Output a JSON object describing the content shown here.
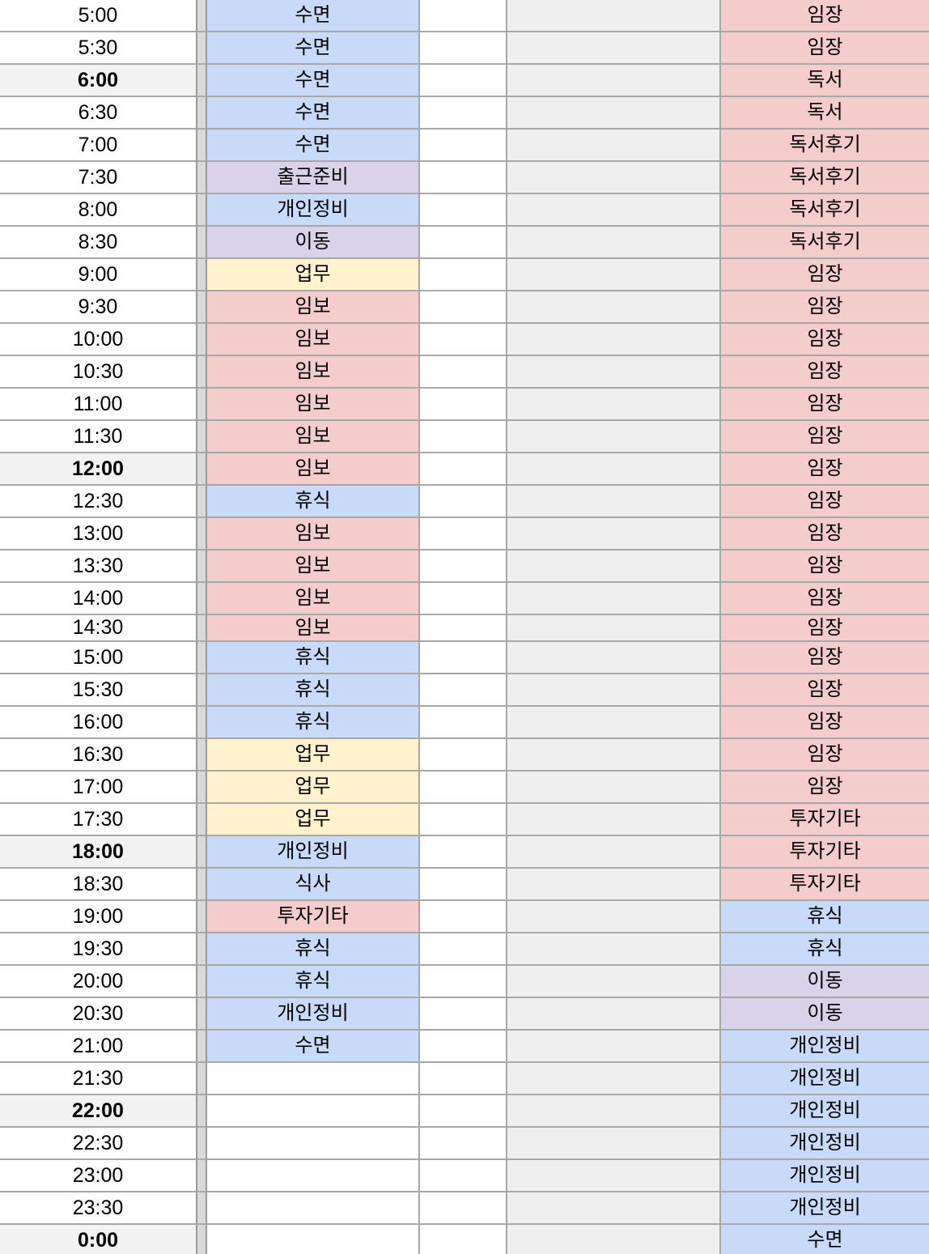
{
  "palette": {
    "blue": "#c9daf8",
    "pink": "#f4cccc",
    "purple": "#d9d2e9",
    "yellow": "#fff2cc",
    "white": "#ffffff",
    "column_d_fill": "#efefef",
    "time_highlight": "#f2f2f2",
    "gridline": "#a8a8a8",
    "divider_fill": "#d9d9d9",
    "divider_edge": "#9a9a9a",
    "text": "#000000"
  },
  "rows": [
    {
      "time": "5:00",
      "bold": false,
      "b": {
        "text": "수면",
        "color": "blue"
      },
      "e": {
        "text": "임장",
        "color": "pink"
      }
    },
    {
      "time": "5:30",
      "bold": false,
      "b": {
        "text": "수면",
        "color": "blue"
      },
      "e": {
        "text": "임장",
        "color": "pink"
      }
    },
    {
      "time": "6:00",
      "bold": true,
      "b": {
        "text": "수면",
        "color": "blue"
      },
      "e": {
        "text": "독서",
        "color": "pink"
      }
    },
    {
      "time": "6:30",
      "bold": false,
      "b": {
        "text": "수면",
        "color": "blue"
      },
      "e": {
        "text": "독서",
        "color": "pink"
      }
    },
    {
      "time": "7:00",
      "bold": false,
      "b": {
        "text": "수면",
        "color": "blue"
      },
      "e": {
        "text": "독서후기",
        "color": "pink"
      }
    },
    {
      "time": "7:30",
      "bold": false,
      "b": {
        "text": "출근준비",
        "color": "purple"
      },
      "e": {
        "text": "독서후기",
        "color": "pink"
      }
    },
    {
      "time": "8:00",
      "bold": false,
      "b": {
        "text": "개인정비",
        "color": "blue"
      },
      "e": {
        "text": "독서후기",
        "color": "pink"
      }
    },
    {
      "time": "8:30",
      "bold": false,
      "b": {
        "text": "이동",
        "color": "purple"
      },
      "e": {
        "text": "독서후기",
        "color": "pink"
      }
    },
    {
      "time": "9:00",
      "bold": false,
      "b": {
        "text": "업무",
        "color": "yellow"
      },
      "e": {
        "text": "임장",
        "color": "pink"
      }
    },
    {
      "time": "9:30",
      "bold": false,
      "b": {
        "text": "임보",
        "color": "pink"
      },
      "e": {
        "text": "임장",
        "color": "pink"
      }
    },
    {
      "time": "10:00",
      "bold": false,
      "b": {
        "text": "임보",
        "color": "pink"
      },
      "e": {
        "text": "임장",
        "color": "pink"
      }
    },
    {
      "time": "10:30",
      "bold": false,
      "b": {
        "text": "임보",
        "color": "pink"
      },
      "e": {
        "text": "임장",
        "color": "pink"
      }
    },
    {
      "time": "11:00",
      "bold": false,
      "b": {
        "text": "임보",
        "color": "pink"
      },
      "e": {
        "text": "임장",
        "color": "pink"
      }
    },
    {
      "time": "11:30",
      "bold": false,
      "b": {
        "text": "임보",
        "color": "pink"
      },
      "e": {
        "text": "임장",
        "color": "pink"
      }
    },
    {
      "time": "12:00",
      "bold": true,
      "b": {
        "text": "임보",
        "color": "pink"
      },
      "e": {
        "text": "임장",
        "color": "pink"
      }
    },
    {
      "time": "12:30",
      "bold": false,
      "b": {
        "text": "휴식",
        "color": "blue"
      },
      "e": {
        "text": "임장",
        "color": "pink"
      }
    },
    {
      "time": "13:00",
      "bold": false,
      "b": {
        "text": "임보",
        "color": "pink"
      },
      "e": {
        "text": "임장",
        "color": "pink"
      }
    },
    {
      "time": "13:30",
      "bold": false,
      "b": {
        "text": "임보",
        "color": "pink"
      },
      "e": {
        "text": "임장",
        "color": "pink"
      }
    },
    {
      "time": "14:00",
      "bold": false,
      "b": {
        "text": "임보",
        "color": "pink"
      },
      "e": {
        "text": "임장",
        "color": "pink"
      }
    },
    {
      "time": "14:30",
      "bold": false,
      "height": 33,
      "b": {
        "text": "임보",
        "color": "pink"
      },
      "e": {
        "text": "임장",
        "color": "pink"
      }
    },
    {
      "time": "15:00",
      "bold": false,
      "b": {
        "text": "휴식",
        "color": "blue"
      },
      "e": {
        "text": "임장",
        "color": "pink"
      }
    },
    {
      "time": "15:30",
      "bold": false,
      "b": {
        "text": "휴식",
        "color": "blue"
      },
      "e": {
        "text": "임장",
        "color": "pink"
      }
    },
    {
      "time": "16:00",
      "bold": false,
      "b": {
        "text": "휴식",
        "color": "blue"
      },
      "e": {
        "text": "임장",
        "color": "pink"
      }
    },
    {
      "time": "16:30",
      "bold": false,
      "b": {
        "text": "업무",
        "color": "yellow"
      },
      "e": {
        "text": "임장",
        "color": "pink"
      }
    },
    {
      "time": "17:00",
      "bold": false,
      "b": {
        "text": "업무",
        "color": "yellow"
      },
      "e": {
        "text": "임장",
        "color": "pink"
      }
    },
    {
      "time": "17:30",
      "bold": false,
      "b": {
        "text": "업무",
        "color": "yellow"
      },
      "e": {
        "text": "투자기타",
        "color": "pink"
      }
    },
    {
      "time": "18:00",
      "bold": true,
      "b": {
        "text": "개인정비",
        "color": "blue"
      },
      "e": {
        "text": "투자기타",
        "color": "pink"
      }
    },
    {
      "time": "18:30",
      "bold": false,
      "b": {
        "text": "식사",
        "color": "blue"
      },
      "e": {
        "text": "투자기타",
        "color": "pink"
      }
    },
    {
      "time": "19:00",
      "bold": false,
      "b": {
        "text": "투자기타",
        "color": "pink"
      },
      "e": {
        "text": "휴식",
        "color": "blue"
      }
    },
    {
      "time": "19:30",
      "bold": false,
      "b": {
        "text": "휴식",
        "color": "blue"
      },
      "e": {
        "text": "휴식",
        "color": "blue"
      }
    },
    {
      "time": "20:00",
      "bold": false,
      "b": {
        "text": "휴식",
        "color": "blue"
      },
      "e": {
        "text": "이동",
        "color": "purple"
      }
    },
    {
      "time": "20:30",
      "bold": false,
      "b": {
        "text": "개인정비",
        "color": "blue"
      },
      "e": {
        "text": "이동",
        "color": "purple"
      }
    },
    {
      "time": "21:00",
      "bold": false,
      "b": {
        "text": "수면",
        "color": "blue"
      },
      "e": {
        "text": "개인정비",
        "color": "blue"
      }
    },
    {
      "time": "21:30",
      "bold": false,
      "b": {
        "text": "",
        "color": "white"
      },
      "e": {
        "text": "개인정비",
        "color": "blue"
      }
    },
    {
      "time": "22:00",
      "bold": true,
      "b": {
        "text": "",
        "color": "white"
      },
      "e": {
        "text": "개인정비",
        "color": "blue"
      }
    },
    {
      "time": "22:30",
      "bold": false,
      "b": {
        "text": "",
        "color": "white"
      },
      "e": {
        "text": "개인정비",
        "color": "blue"
      }
    },
    {
      "time": "23:00",
      "bold": false,
      "b": {
        "text": "",
        "color": "white"
      },
      "e": {
        "text": "개인정비",
        "color": "blue"
      }
    },
    {
      "time": "23:30",
      "bold": false,
      "b": {
        "text": "",
        "color": "white"
      },
      "e": {
        "text": "개인정비",
        "color": "blue"
      }
    },
    {
      "time": "0:00",
      "bold": true,
      "b": {
        "text": "",
        "color": "white"
      },
      "e": {
        "text": "수면",
        "color": "blue"
      }
    }
  ]
}
